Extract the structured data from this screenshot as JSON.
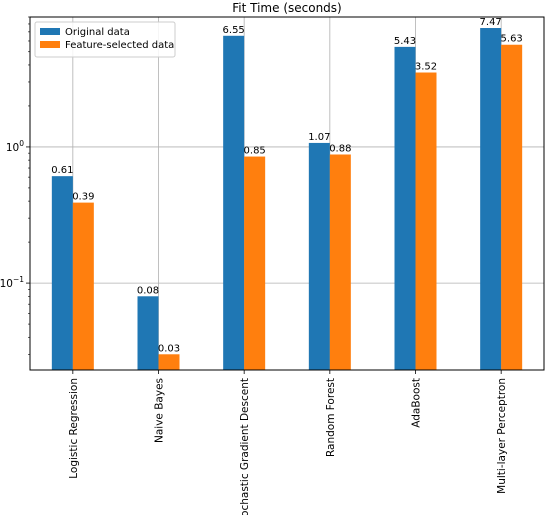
{
  "chart_data": {
    "type": "bar",
    "title": "Fit Time (seconds)",
    "xlabel": "",
    "ylabel": "",
    "yscale": "log",
    "ylim": [
      0.023,
      9.0
    ],
    "yticks": [
      {
        "value": 0.1,
        "base": "10",
        "exp": "−1"
      },
      {
        "value": 1,
        "base": "10",
        "exp": "0"
      }
    ],
    "grid": true,
    "legend_position": "top-left",
    "categories": [
      "Logistic Regression",
      "Naive Bayes",
      "Stochastic Gradient Descent",
      "Random Forest",
      "AdaBoost",
      "Multi-layer Perceptron"
    ],
    "series": [
      {
        "name": "Original data",
        "color": "#1f77b4",
        "values": [
          0.61,
          0.08,
          6.55,
          1.07,
          5.43,
          7.47
        ]
      },
      {
        "name": "Feature-selected data",
        "color": "#ff7f0e",
        "values": [
          0.39,
          0.03,
          0.85,
          0.88,
          3.52,
          5.63
        ]
      }
    ]
  }
}
